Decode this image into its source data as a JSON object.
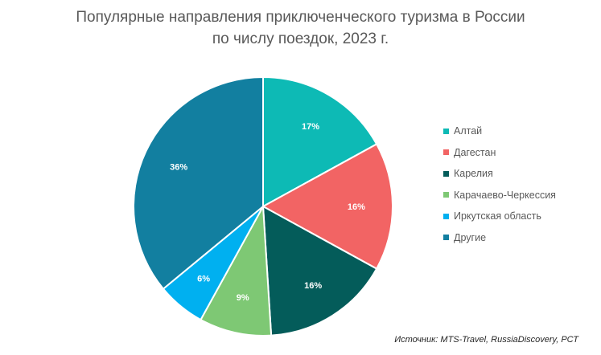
{
  "title_line1": "Популярные направления приключенческого туризма  в России",
  "title_line2": "по числу поездок, 2023 г.",
  "source": "Источник: MTS-Travel, RussiaDiscovery, РСТ",
  "chart_data": {
    "type": "pie",
    "title": "Популярные направления приключенческого туризма  в России по числу поездок, 2023 г.",
    "legend_position": "right",
    "start_angle_deg": 0,
    "direction": "clockwise",
    "slices": [
      {
        "name": "Алтай",
        "value": 17,
        "label": "17%",
        "color": "#0dbab5"
      },
      {
        "name": "Дагестан",
        "value": 16,
        "label": "16%",
        "color": "#f26464"
      },
      {
        "name": "Карелия",
        "value": 16,
        "label": "16%",
        "color": "#045c5a"
      },
      {
        "name": "Карачаево-Черкессия",
        "value": 9,
        "label": "9%",
        "color": "#7ec874"
      },
      {
        "name": "Иркутская  область",
        "value": 6,
        "label": "6%",
        "color": "#00b0f0"
      },
      {
        "name": "Другие",
        "value": 36,
        "label": "36%",
        "color": "#127fa0"
      }
    ]
  }
}
